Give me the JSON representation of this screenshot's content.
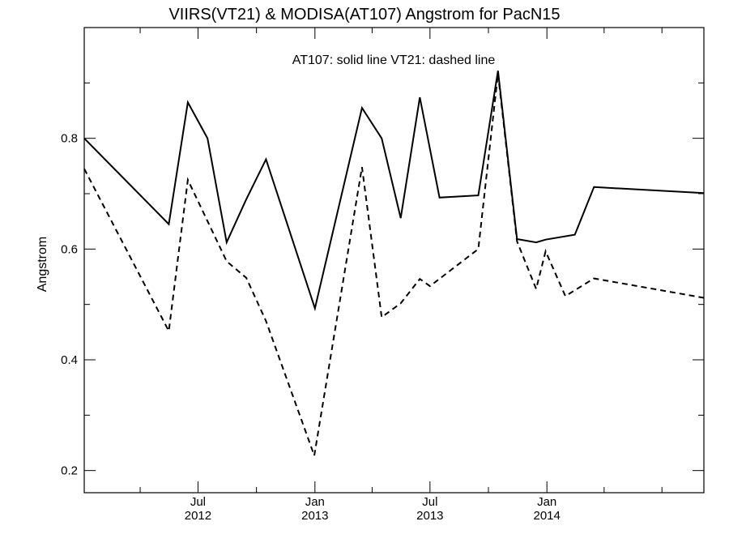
{
  "chart_data": {
    "type": "line",
    "title": "VIIRS(VT21) & MODISA(AT107)  Angstrom for PacN15",
    "xlabel": "",
    "ylabel": "Angstrom",
    "legend_note": "AT107: solid line   VT21: dashed line",
    "ylim": [
      0.16,
      1.0
    ],
    "xlim": [
      "2012-01-04",
      "2014-09-05"
    ],
    "y_ticks": [
      {
        "value": 0.2,
        "label": "0.2"
      },
      {
        "value": 0.4,
        "label": "0.4"
      },
      {
        "value": 0.6,
        "label": "0.6"
      },
      {
        "value": 0.8,
        "label": "0.8"
      }
    ],
    "y_minor_ticks": [
      0.3,
      0.5,
      0.7,
      0.9
    ],
    "x_ticks": [
      {
        "date": "2012-07-01",
        "month": "Jul",
        "year": "2012"
      },
      {
        "date": "2013-01-01",
        "month": "Jan",
        "year": "2013"
      },
      {
        "date": "2013-07-01",
        "month": "Jul",
        "year": "2013"
      },
      {
        "date": "2014-01-01",
        "month": "Jan",
        "year": "2014"
      }
    ],
    "x_minor_ticks": [
      "2012-04-01",
      "2012-10-01",
      "2013-04-01",
      "2013-10-01",
      "2014-04-01",
      "2014-07-01"
    ],
    "series": [
      {
        "name": "AT107",
        "style": "solid",
        "points": [
          [
            "2012-01-04",
            0.8
          ],
          [
            "2012-05-16",
            0.645
          ],
          [
            "2012-06-15",
            0.865
          ],
          [
            "2012-07-16",
            0.8
          ],
          [
            "2012-08-15",
            0.612
          ],
          [
            "2012-09-15",
            0.69
          ],
          [
            "2012-10-16",
            0.762
          ],
          [
            "2013-01-01",
            0.493
          ],
          [
            "2013-03-16",
            0.855
          ],
          [
            "2013-04-16",
            0.8
          ],
          [
            "2013-05-16",
            0.656
          ],
          [
            "2013-06-15",
            0.874
          ],
          [
            "2013-07-16",
            0.693
          ],
          [
            "2013-09-15",
            0.697
          ],
          [
            "2013-10-16",
            0.922
          ],
          [
            "2013-11-15",
            0.618
          ],
          [
            "2013-12-15",
            0.612
          ],
          [
            "2013-12-30",
            0.617
          ],
          [
            "2014-02-14",
            0.626
          ],
          [
            "2014-03-16",
            0.712
          ],
          [
            "2014-09-05",
            0.701
          ]
        ]
      },
      {
        "name": "VT21",
        "style": "dashed",
        "points": [
          [
            "2012-01-04",
            0.745
          ],
          [
            "2012-05-16",
            0.452
          ],
          [
            "2012-06-15",
            0.725
          ],
          [
            "2012-08-15",
            0.578
          ],
          [
            "2012-09-15",
            0.548
          ],
          [
            "2012-10-16",
            0.47
          ],
          [
            "2012-12-31",
            0.227
          ],
          [
            "2013-03-16",
            0.748
          ],
          [
            "2013-04-16",
            0.477
          ],
          [
            "2013-05-16",
            0.502
          ],
          [
            "2013-06-15",
            0.546
          ],
          [
            "2013-07-01",
            0.533
          ],
          [
            "2013-09-15",
            0.6
          ],
          [
            "2013-10-16",
            0.917
          ],
          [
            "2013-11-15",
            0.614
          ],
          [
            "2013-12-15",
            0.528
          ],
          [
            "2013-12-30",
            0.596
          ],
          [
            "2014-01-30",
            0.515
          ],
          [
            "2014-03-16",
            0.547
          ],
          [
            "2014-09-05",
            0.512
          ]
        ]
      }
    ]
  }
}
